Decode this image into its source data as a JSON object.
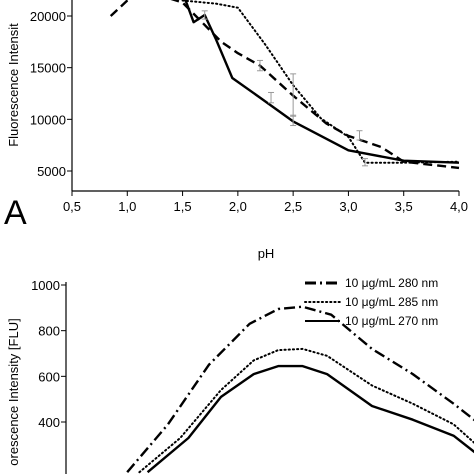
{
  "chart_data": [
    {
      "type": "line",
      "panel_label": "A",
      "title": "",
      "xlabel": "pH",
      "ylabel": "Fluorescence Intensit",
      "xlim": [
        0.5,
        4.0
      ],
      "ylim": [
        4000,
        22000
      ],
      "x_ticks": [
        "0,5",
        "1,0",
        "1,5",
        "2,0",
        "2,5",
        "3,0",
        "3,5",
        "4,0"
      ],
      "y_ticks": [
        "5000",
        "10000",
        "15000",
        "20000"
      ],
      "x_tick_values": [
        0.5,
        1.0,
        1.5,
        2.0,
        2.5,
        3.0,
        3.5,
        4.0
      ],
      "y_tick_values": [
        5000,
        10000,
        15000,
        20000
      ],
      "grid": false,
      "legend": "none",
      "series": [
        {
          "style": "solid",
          "x": [
            1.5,
            1.6,
            1.7,
            1.8,
            1.95,
            2.2,
            2.5,
            3.0,
            3.5,
            4.0
          ],
          "y": [
            22300,
            19400,
            20100,
            17800,
            14000,
            12100,
            9800,
            7000,
            6000,
            5800
          ],
          "error_bars": [
            {
              "x": 1.7,
              "low": 19700,
              "high": 20500
            },
            {
              "x": 2.3,
              "low": 11600,
              "high": 12600
            },
            {
              "x": 2.5,
              "low": 9400,
              "high": 10400
            }
          ]
        },
        {
          "style": "dashed",
          "x": [
            0.85,
            1.0,
            1.15,
            1.5,
            1.85,
            2.0,
            2.2,
            2.5,
            2.8,
            3.0,
            3.3,
            3.5,
            4.0
          ],
          "y": [
            20000,
            21500,
            22500,
            21300,
            17500,
            16400,
            15200,
            12300,
            9600,
            8400,
            7300,
            5900,
            5300
          ],
          "error_bars": [
            {
              "x": 2.2,
              "low": 14700,
              "high": 15700
            },
            {
              "x": 3.1,
              "low": 8000,
              "high": 8900
            }
          ]
        },
        {
          "style": "dotted",
          "x": [
            1.5,
            1.8,
            2.0,
            2.25,
            2.5,
            2.75,
            3.0,
            3.15,
            3.5,
            4.0
          ],
          "y": [
            21500,
            21200,
            20800,
            17200,
            13300,
            10100,
            8300,
            5800,
            5800,
            5900
          ],
          "error_bars": [
            {
              "x": 2.5,
              "low": 10300,
              "high": 14400
            },
            {
              "x": 3.15,
              "low": 5500,
              "high": 6200
            }
          ]
        }
      ]
    },
    {
      "type": "line",
      "title": "",
      "xlabel": "",
      "ylabel": "orescence Intensity [FLU]",
      "ylim": [
        180,
        1000
      ],
      "y_ticks": [
        "400",
        "600",
        "800",
        "1000"
      ],
      "y_tick_values": [
        400,
        600,
        800,
        1000
      ],
      "x_range": [
        0,
        100
      ],
      "grid": false,
      "legend": "top-right",
      "series": [
        {
          "name": "10 μg/mL 280 nm",
          "style": "dash-dot",
          "x": [
            15,
            25,
            35,
            45,
            52,
            58,
            65,
            75,
            85,
            95,
            105
          ],
          "y": [
            180,
            390,
            650,
            830,
            895,
            905,
            870,
            720,
            610,
            480,
            340
          ]
        },
        {
          "name": "10 μg/mL 285 nm",
          "style": "dotted",
          "x": [
            18,
            28,
            38,
            46,
            52,
            58,
            64,
            75,
            85,
            95,
            105
          ],
          "y": [
            180,
            330,
            540,
            670,
            715,
            720,
            690,
            560,
            480,
            390,
            230
          ]
        },
        {
          "name": "10 μg/mL 270 nm",
          "style": "solid",
          "x": [
            20,
            30,
            38,
            46,
            52,
            58,
            64,
            75,
            85,
            95,
            105
          ],
          "y": [
            180,
            330,
            510,
            610,
            645,
            645,
            610,
            470,
            410,
            340,
            200
          ]
        }
      ]
    }
  ]
}
